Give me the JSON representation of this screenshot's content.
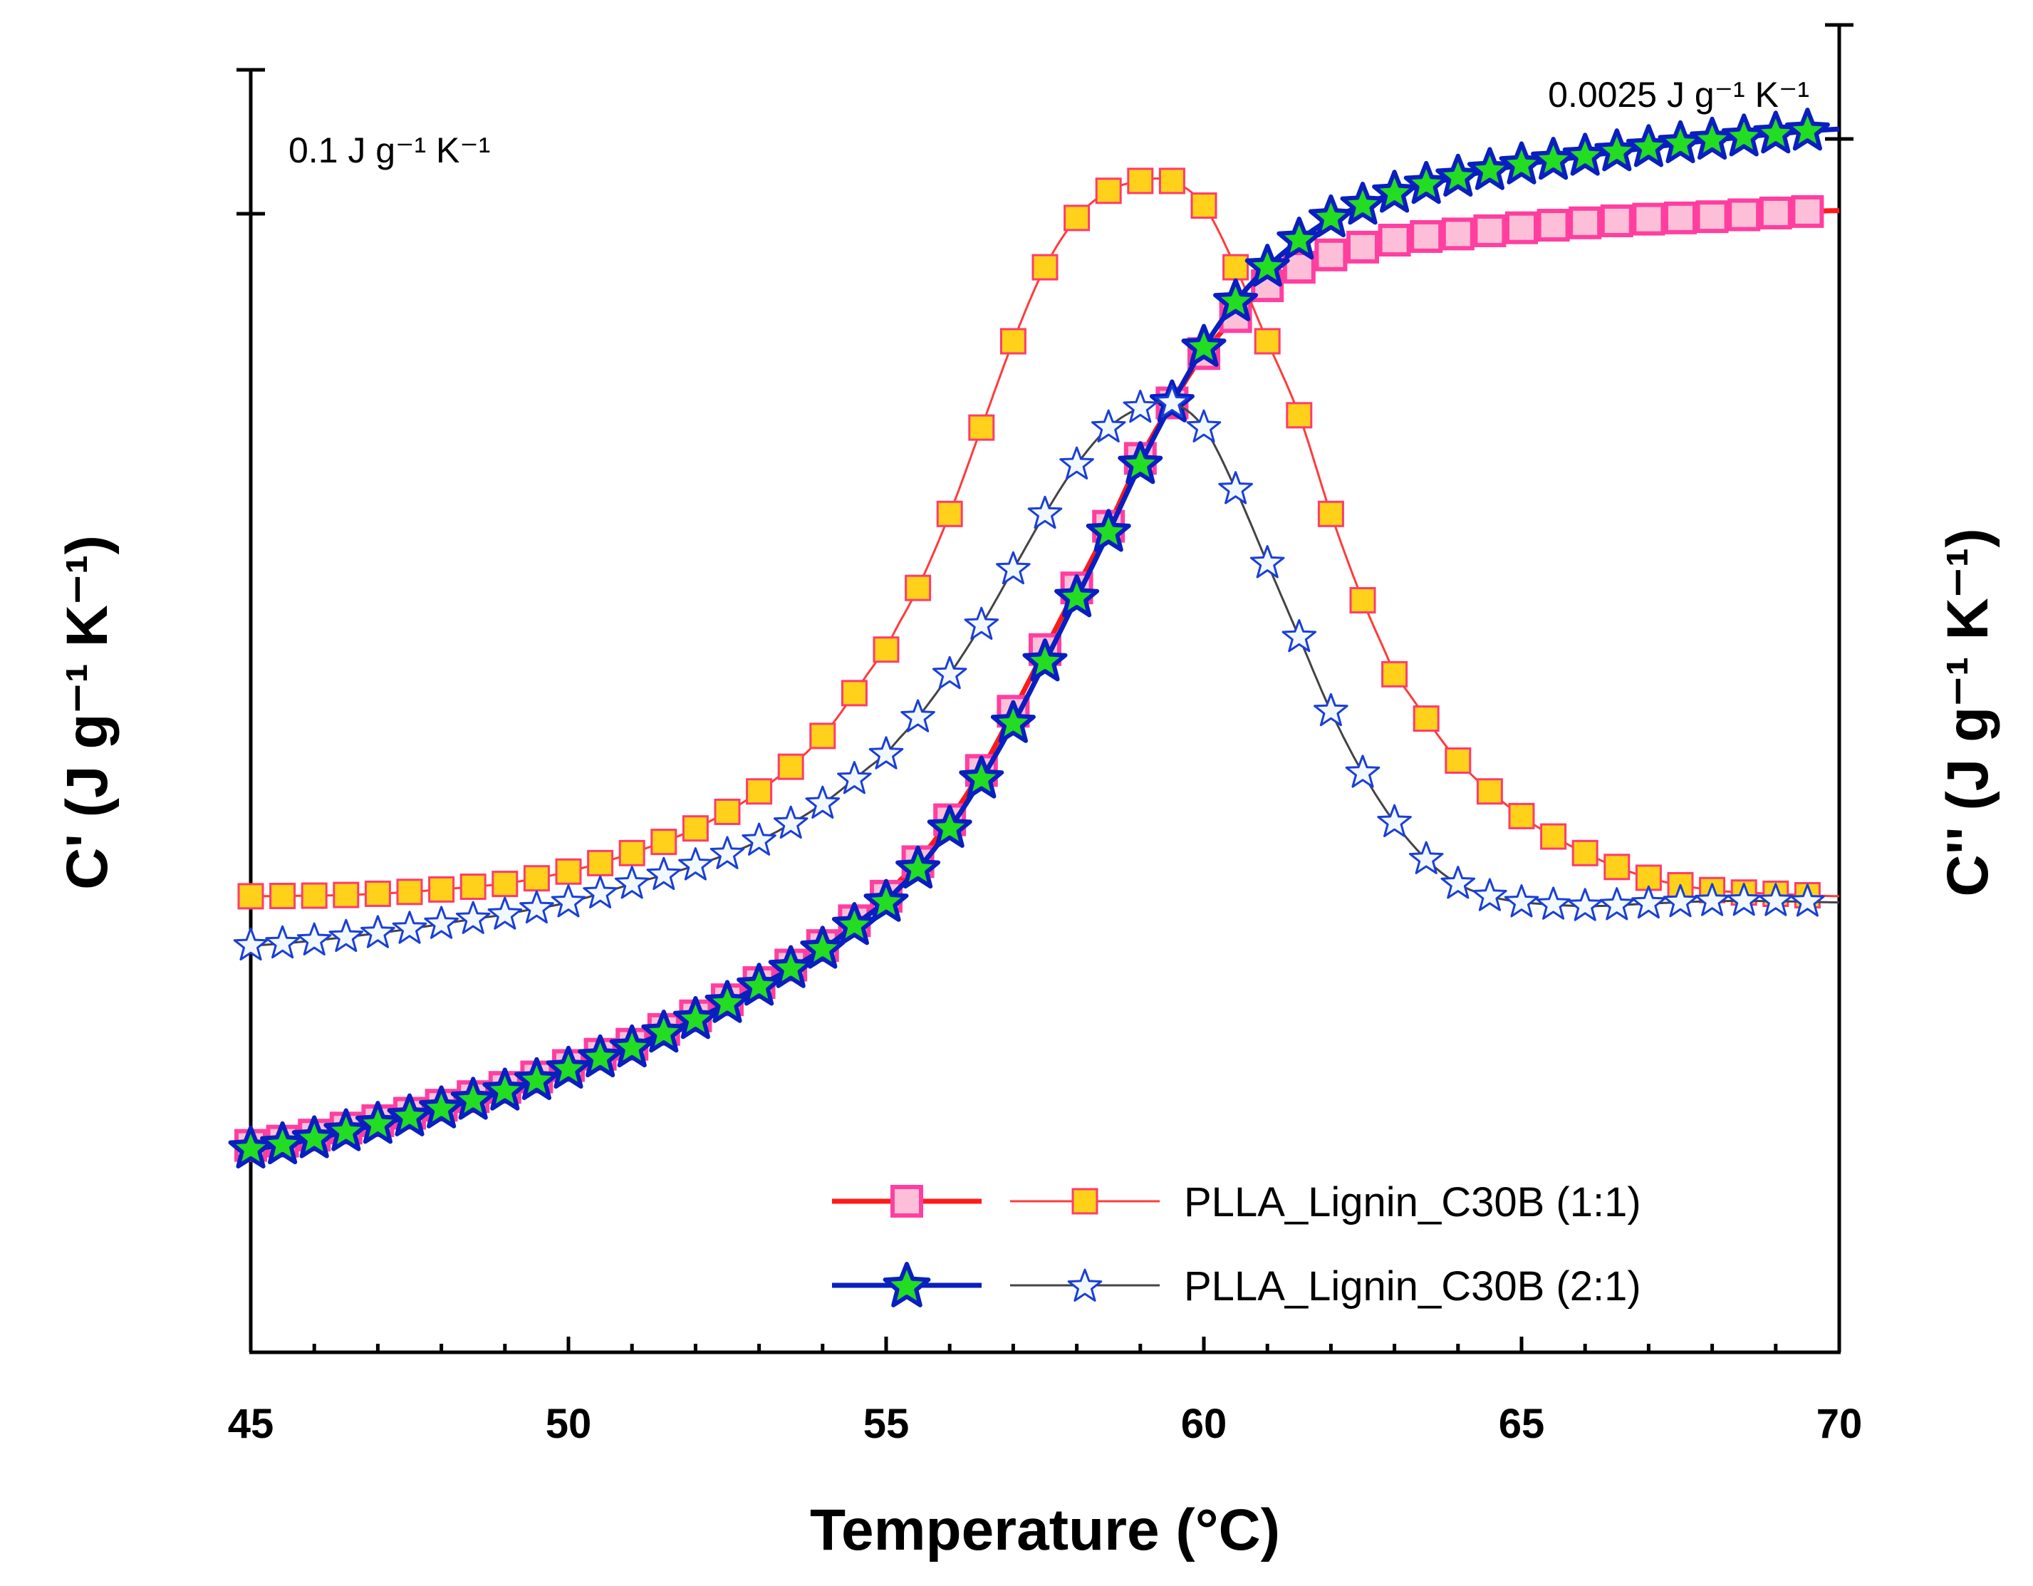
{
  "chart_data": {
    "type": "line",
    "xlabel": "Temperature (°C)",
    "ylabel_left": "C' (J g⁻¹ K⁻¹)",
    "ylabel_right": "C'' (J g⁻¹ K⁻¹)",
    "xlim": [
      45,
      70
    ],
    "x_ticks": [
      "45",
      "50",
      "55",
      "60",
      "65",
      "70"
    ],
    "left_scale_bar": "0.1 J g⁻¹ K⁻¹",
    "right_scale_bar": "0.0025 J g⁻¹ K⁻¹",
    "left_ylim": [
      0,
      1
    ],
    "right_ylim": [
      0,
      1
    ],
    "legend": [
      {
        "label": "PLLA_Lignin_C30B (1:1)"
      },
      {
        "label": "PLLA_Lignin_C30B (2:1)"
      }
    ],
    "series": [
      {
        "name": "C' PLLA_Lignin_C30B (1:1)",
        "axis": "left",
        "x": [
          45,
          47,
          49,
          51,
          52,
          53,
          54,
          55,
          55.5,
          56,
          56.5,
          57,
          57.5,
          58,
          58.5,
          59,
          59.5,
          60,
          60.5,
          61,
          61.5,
          62,
          63,
          64,
          65,
          66,
          67,
          68,
          69,
          70
        ],
        "values": [
          0.188,
          0.208,
          0.235,
          0.27,
          0.293,
          0.32,
          0.35,
          0.39,
          0.418,
          0.452,
          0.492,
          0.54,
          0.59,
          0.64,
          0.69,
          0.745,
          0.79,
          0.83,
          0.86,
          0.885,
          0.9,
          0.91,
          0.922,
          0.927,
          0.932,
          0.936,
          0.939,
          0.941,
          0.944,
          0.946
        ]
      },
      {
        "name": "C'' PLLA_Lignin_C30B (1:1)",
        "axis": "right",
        "x": [
          45,
          47,
          49,
          50,
          51,
          52,
          53,
          54,
          55,
          55.5,
          56,
          56.5,
          57,
          57.5,
          58,
          58.5,
          59,
          59.3,
          59.5,
          60,
          60.5,
          61,
          61.5,
          62,
          62.5,
          63,
          64,
          65,
          66,
          67,
          68,
          69,
          70
        ],
        "values": [
          0.39,
          0.392,
          0.4,
          0.41,
          0.425,
          0.445,
          0.475,
          0.52,
          0.59,
          0.64,
          0.7,
          0.77,
          0.84,
          0.9,
          0.94,
          0.962,
          0.97,
          0.972,
          0.97,
          0.95,
          0.9,
          0.84,
          0.78,
          0.7,
          0.63,
          0.57,
          0.5,
          0.455,
          0.425,
          0.405,
          0.395,
          0.392,
          0.39
        ]
      },
      {
        "name": "C' PLLA_Lignin_C30B (2:1)",
        "axis": "left",
        "x": [
          45,
          47,
          49,
          51,
          52,
          53,
          54,
          55,
          55.5,
          56,
          56.5,
          57,
          57.5,
          58,
          58.5,
          59,
          59.5,
          60,
          60.5,
          61,
          61.5,
          62,
          63,
          64,
          65,
          66,
          67,
          68,
          69,
          70
        ],
        "values": [
          0.185,
          0.205,
          0.232,
          0.267,
          0.29,
          0.317,
          0.347,
          0.385,
          0.412,
          0.445,
          0.485,
          0.53,
          0.58,
          0.632,
          0.685,
          0.74,
          0.79,
          0.835,
          0.872,
          0.9,
          0.922,
          0.94,
          0.96,
          0.973,
          0.983,
          0.99,
          0.997,
          1.003,
          1.008,
          1.012
        ]
      },
      {
        "name": "C'' PLLA_Lignin_C30B (2:1)",
        "axis": "right",
        "x": [
          45,
          47,
          49,
          50,
          51,
          52,
          53,
          54,
          55,
          55.5,
          56,
          56.5,
          57,
          57.5,
          58,
          58.5,
          59,
          59.5,
          60,
          60.5,
          61,
          61.5,
          62,
          62.5,
          63,
          63.5,
          64,
          64.5,
          65,
          66,
          67,
          68,
          69,
          70
        ],
        "values": [
          0.35,
          0.36,
          0.375,
          0.385,
          0.4,
          0.415,
          0.435,
          0.465,
          0.505,
          0.535,
          0.57,
          0.61,
          0.655,
          0.7,
          0.74,
          0.77,
          0.786,
          0.79,
          0.77,
          0.72,
          0.66,
          0.6,
          0.54,
          0.49,
          0.45,
          0.42,
          0.4,
          0.39,
          0.385,
          0.382,
          0.384,
          0.386,
          0.386,
          0.385
        ]
      }
    ]
  }
}
